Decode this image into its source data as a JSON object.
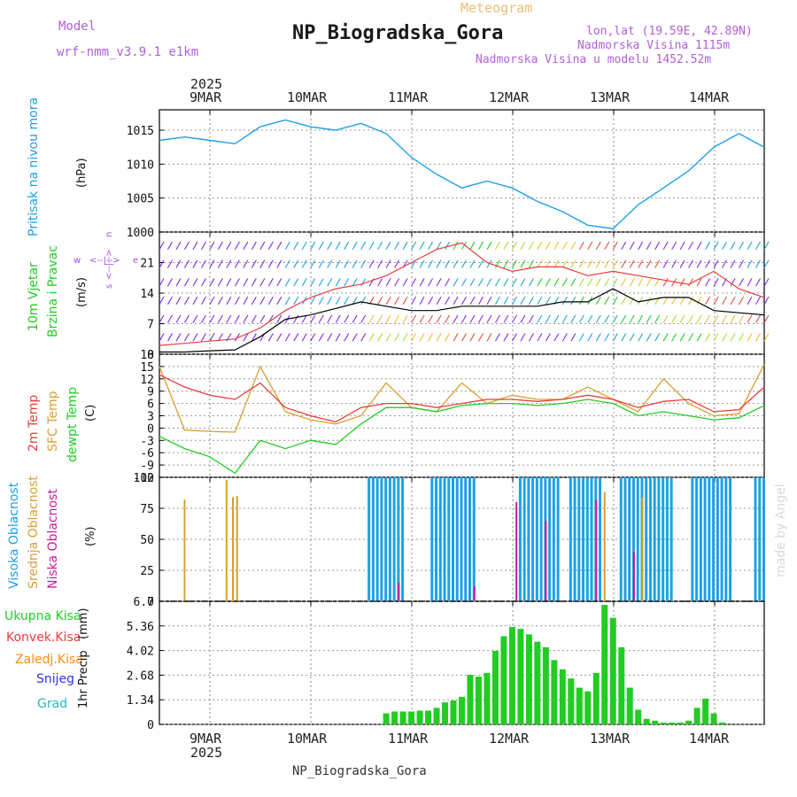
{
  "header": {
    "model_label": "Model",
    "model_name": "wrf-nmm_v3.9.1 e1km",
    "meteogram_label": "Meteogram",
    "station_title": "NP_Biogradska_Gora",
    "lonlat": "lon,lat (19.59E, 42.89N)",
    "elevation": "Nadmorska Visina 1115m",
    "model_elevation": "Nadmorska Visina u modelu 1452.52m",
    "footer_station": "NP_Biogradska_Gora",
    "watermark": "made by Angel"
  },
  "time_axis": {
    "year": "2025",
    "date_labels": [
      "9MAR",
      "10MAR",
      "11MAR",
      "12MAR",
      "13MAR",
      "14MAR"
    ],
    "bottom_year": "2025"
  },
  "colors": {
    "pressure": "#1ea0e6",
    "temp_2m": "#e83c3c",
    "temp_sfc": "#d9a030",
    "dewpoint": "#22cc22",
    "cloud_high": "#1ea0e6",
    "cloud_mid": "#d9a030",
    "cloud_low": "#cc1a99",
    "precip_total": "#22cc22",
    "precip_convective": "#e83c3c",
    "precip_freezing": "#ff8c1a",
    "precip_snow": "#3333dd",
    "precip_hail": "#22bbbb",
    "wind_speed_line": "#000000",
    "wind_gust_marks": "#e83c3c"
  },
  "chart_data": [
    {
      "type": "line",
      "panel": "pressure",
      "ylabel_main": "Pritisak na nivou mora",
      "ylabel_unit": "(hPa)",
      "ylim": [
        1000,
        1018
      ],
      "yticks": [
        "1000",
        "1005",
        "1010",
        "1015"
      ],
      "grid": true,
      "x": [
        0,
        6,
        12,
        18,
        24,
        30,
        36,
        42,
        48,
        54,
        60,
        66,
        72,
        78,
        84,
        90,
        96,
        102,
        108,
        114,
        120,
        126,
        132,
        138,
        144
      ],
      "series": [
        {
          "values": [
            1013.5,
            1014,
            1013.5,
            1013,
            1015.5,
            1016.5,
            1015.5,
            1015,
            1016,
            1014.5,
            1011,
            1008.5,
            1006.5,
            1007.5,
            1006.5,
            1004.5,
            1003,
            1001,
            1000.5,
            1004,
            1006.5,
            1009,
            1012.5,
            1014.5,
            1012.5
          ]
        }
      ]
    },
    {
      "type": "line",
      "panel": "wind",
      "ylabel_main": "10m Vjetar",
      "ylabel_sub": "Brzina i Pravac",
      "ylabel_unit": "(m/s)",
      "direction_key": [
        "w",
        "<--|-->",
        "e",
        "s",
        "<--|-->",
        "n"
      ],
      "ylim": [
        0,
        28
      ],
      "yticks": [
        "0",
        "7",
        "14",
        "21"
      ],
      "grid": true,
      "x": [
        0,
        6,
        12,
        18,
        24,
        30,
        36,
        42,
        48,
        54,
        60,
        66,
        72,
        78,
        84,
        90,
        96,
        102,
        108,
        114,
        120,
        126,
        132,
        138,
        144
      ],
      "series": [
        {
          "values": [
            0.5,
            0.5,
            0.8,
            1,
            4,
            8,
            9,
            10.5,
            12,
            11,
            10,
            10,
            11,
            11,
            11,
            11,
            12,
            12,
            15,
            12,
            13,
            13,
            10,
            9.5,
            9
          ]
        },
        {
          "values": [
            2,
            2.5,
            3,
            3.5,
            6,
            10,
            13,
            15,
            16,
            18,
            21,
            24,
            25.5,
            21,
            19,
            20,
            20,
            18,
            19,
            18,
            17,
            16,
            19,
            15,
            13
          ]
        }
      ]
    },
    {
      "type": "line",
      "panel": "temperature",
      "ylabel_main": "2m Temp",
      "ylabel_sub": "SFC Temp",
      "ylabel_sub2": "dewpt Temp",
      "ylabel_unit": "(C)",
      "ylim": [
        -12,
        18
      ],
      "yticks": [
        "-12",
        "-9",
        "-6",
        "-3",
        "0",
        "3",
        "6",
        "9",
        "12",
        "15",
        "18"
      ],
      "grid": true,
      "x": [
        0,
        6,
        12,
        18,
        24,
        30,
        36,
        42,
        48,
        54,
        60,
        66,
        72,
        78,
        84,
        90,
        96,
        102,
        108,
        114,
        120,
        126,
        132,
        138,
        144
      ],
      "series": [
        {
          "values": [
            13,
            10,
            8,
            7,
            11,
            5,
            3,
            1.5,
            5,
            6,
            6,
            5,
            6,
            7,
            7,
            6.5,
            7,
            8,
            7,
            5,
            6.5,
            7,
            4,
            4.5,
            10
          ]
        },
        {
          "values": [
            15,
            -0.5,
            -0.8,
            -1,
            15,
            4,
            2,
            1,
            3,
            11,
            5,
            4,
            11,
            6,
            8,
            7,
            7,
            10,
            7,
            4,
            12,
            6,
            3,
            3.5,
            15.5
          ]
        },
        {
          "values": [
            -2,
            -5,
            -7,
            -11,
            -3,
            -5,
            -3,
            -4,
            1,
            5,
            5,
            4,
            5.5,
            6,
            6,
            5.5,
            6,
            7,
            6,
            3,
            4,
            3,
            2,
            2.5,
            5.5
          ]
        }
      ]
    },
    {
      "type": "bar",
      "panel": "clouds",
      "ylabel_main": "Visoka Oblacnost",
      "ylabel_sub": "Srednja Oblacnost",
      "ylabel_sub2": "Niska Oblacnost",
      "ylabel_unit": "(%)",
      "ylim": [
        0,
        100
      ],
      "yticks": [
        "0",
        "25",
        "50",
        "75",
        "100"
      ],
      "grid": true,
      "note": "high-cloud coverage shown as blocks of 100% bars between time ranges (hours from start)",
      "high_cloud_spans_hours": [
        [
          50,
          58
        ],
        [
          65,
          75
        ],
        [
          86,
          95
        ],
        [
          98,
          105
        ],
        [
          110,
          122
        ],
        [
          127,
          136
        ],
        [
          142,
          144
        ]
      ],
      "mid_cloud_spikes_hours": [
        [
          6,
          82
        ],
        [
          16,
          98
        ],
        [
          17.5,
          84
        ],
        [
          18.5,
          85
        ],
        [
          106,
          88
        ],
        [
          115,
          84
        ]
      ],
      "low_cloud_spikes_hours": [
        [
          57,
          15
        ],
        [
          75,
          12
        ],
        [
          85,
          80
        ],
        [
          92,
          65
        ],
        [
          104,
          82
        ],
        [
          113,
          40
        ]
      ]
    },
    {
      "type": "bar",
      "panel": "precipitation",
      "ylabel_main": "1hr Precip",
      "ylabel_unit": "(mm)",
      "legend": [
        "Ukupna Kisa",
        "Konvek.Kisa",
        "Zaledj.Kisa",
        "Snijeg",
        "Grad"
      ],
      "ylim": [
        0,
        6.7
      ],
      "yticks": [
        "0",
        "1.34",
        "2.68",
        "4.02",
        "5.36",
        "6.7"
      ],
      "grid": true,
      "x": [
        54,
        56,
        58,
        60,
        62,
        64,
        66,
        68,
        70,
        72,
        74,
        76,
        78,
        80,
        82,
        84,
        86,
        88,
        90,
        92,
        94,
        96,
        98,
        100,
        102,
        104,
        106,
        108,
        110,
        112,
        114,
        116,
        118,
        120,
        122,
        124,
        126,
        128,
        130,
        132,
        134,
        136
      ],
      "values": [
        0.6,
        0.7,
        0.7,
        0.7,
        0.75,
        0.75,
        0.9,
        1.2,
        1.3,
        1.5,
        2.7,
        2.6,
        2.8,
        4,
        4.8,
        5.3,
        5.2,
        4.9,
        4.5,
        4.2,
        3.5,
        3,
        2.5,
        2,
        1.8,
        2.8,
        6.5,
        5.8,
        4.2,
        2,
        0.8,
        0.3,
        0.2,
        0.1,
        0.1,
        0.1,
        0.2,
        0.9,
        1.4,
        0.6,
        0.1,
        0
      ]
    }
  ]
}
